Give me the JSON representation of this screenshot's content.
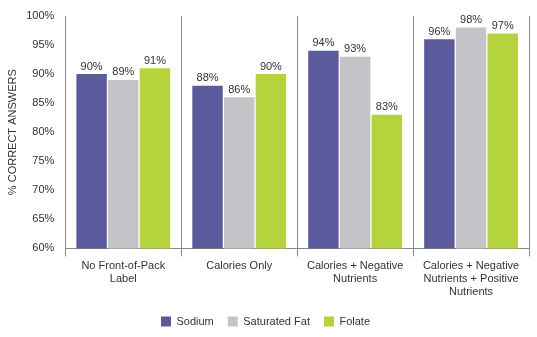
{
  "chart_data": {
    "type": "bar",
    "y_label": "% CORRECT ANSWERS",
    "categories": [
      "No Front-of-Pack Label",
      "Calories Only",
      "Calories + Negative Nutrients",
      "Calories + Negative Nutrients + Positive Nutrients"
    ],
    "series": [
      {
        "name": "Sodium",
        "color": "#5b5a9c",
        "values": [
          90,
          88,
          94,
          96
        ],
        "value_labels": [
          "90%",
          "88%",
          "94%",
          "96%"
        ]
      },
      {
        "name": "Saturated Fat",
        "color": "#c4c4c8",
        "values": [
          89,
          86,
          93,
          98
        ],
        "value_labels": [
          "89%",
          "86%",
          "93%",
          "98%"
        ]
      },
      {
        "name": "Folate",
        "color": "#b5d33d",
        "values": [
          91,
          90,
          83,
          97
        ],
        "value_labels": [
          "91%",
          "90%",
          "83%",
          "97%"
        ]
      }
    ],
    "ylim": [
      60,
      100
    ],
    "yticks": [
      {
        "value": 60,
        "label": "60%"
      },
      {
        "value": 65,
        "label": "65%"
      },
      {
        "value": 70,
        "label": "70%"
      },
      {
        "value": 75,
        "label": "75%"
      },
      {
        "value": 80,
        "label": "80%"
      },
      {
        "value": 85,
        "label": "85%"
      },
      {
        "value": 90,
        "label": "90%"
      },
      {
        "value": 95,
        "label": "95%"
      },
      {
        "value": 100,
        "label": "100%"
      }
    ],
    "grid": "x",
    "legend": "bottom",
    "data_labels": true
  }
}
